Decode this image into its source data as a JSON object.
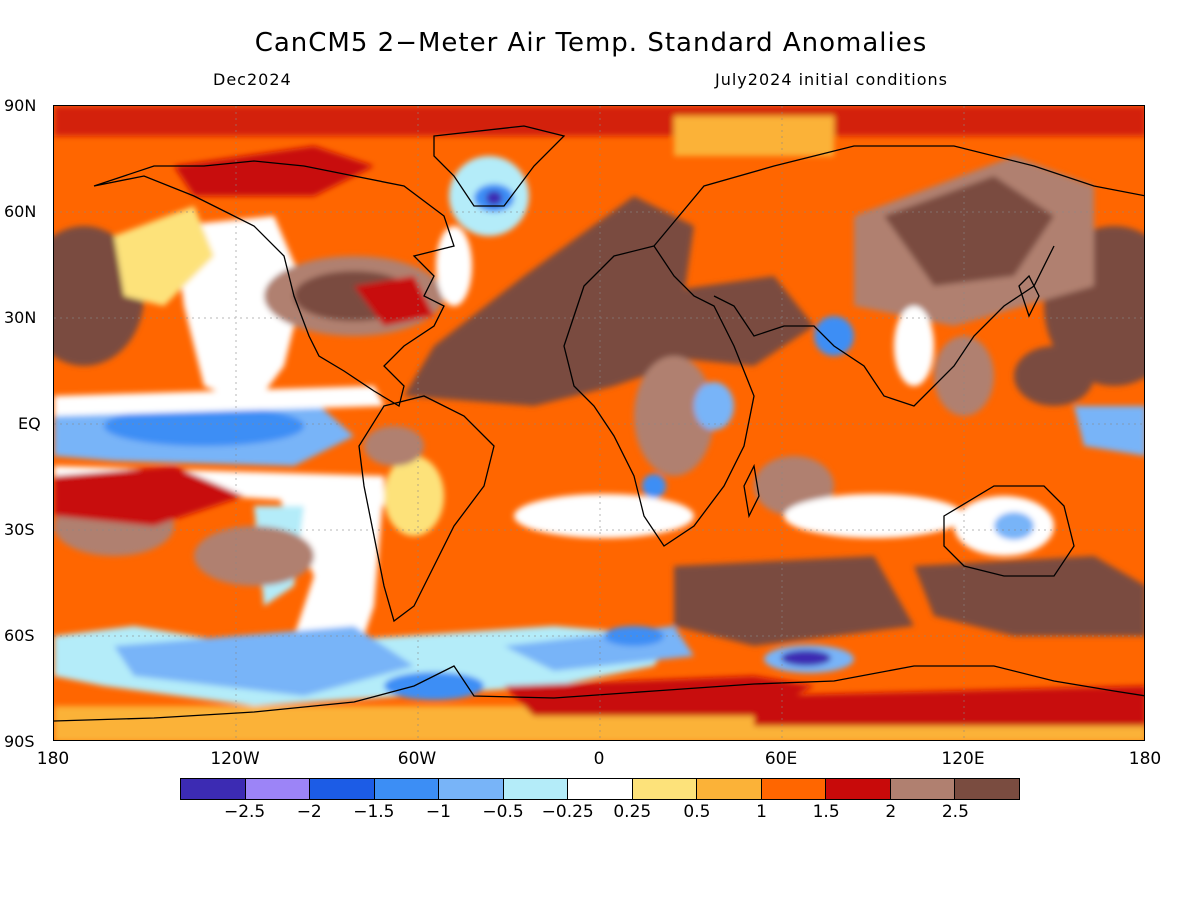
{
  "title": "CanCM5 2−Meter Air Temp. Standard Anomalies",
  "valid_month": "Dec2024",
  "init_text": "July2024 initial conditions",
  "y_axis_labels": [
    "90N",
    "60N",
    "30N",
    "EQ",
    "30S",
    "60S",
    "90S"
  ],
  "x_axis_labels": [
    "180",
    "120W",
    "60W",
    "0",
    "60E",
    "120E",
    "180"
  ],
  "colorbar": {
    "colors": [
      "#3c2bb3",
      "#9c84f7",
      "#1c5ce6",
      "#3c8ef5",
      "#78b4f8",
      "#b4ecf9",
      "#ffffff",
      "#fde27a",
      "#fbb238",
      "#ff6600",
      "#c80a0a",
      "#b08070",
      "#7a4c40"
    ],
    "labels": [
      "−2.5",
      "−2",
      "−1.5",
      "−1",
      "−0.5",
      "−0.25",
      "0.25",
      "0.5",
      "1",
      "1.5",
      "2",
      "2.5"
    ]
  }
}
